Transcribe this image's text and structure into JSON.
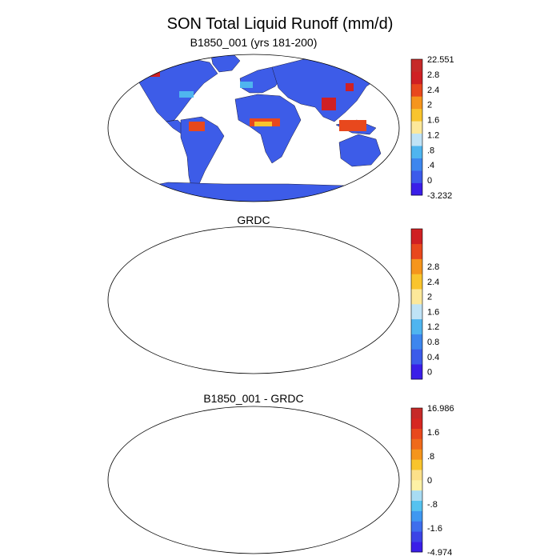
{
  "figure": {
    "title": "SON Total Liquid Runoff (mm/d)"
  },
  "panels": [
    {
      "id": "model",
      "title": "B1850_001 (yrs 181-200)",
      "colorbar": {
        "colors": [
          "#3a1ee8",
          "#3c5bea",
          "#3d86ee",
          "#4fb5ef",
          "#bfe3f6",
          "#fde89a",
          "#f9c42d",
          "#f5951c",
          "#e8481d",
          "#cf2023",
          "#c62a28"
        ],
        "labels": [
          "-3.232",
          "0",
          ".4",
          ".8",
          "1.2",
          "1.6",
          "2",
          "2.4",
          "2.8",
          "22.551"
        ]
      }
    },
    {
      "id": "obs",
      "title": "GRDC",
      "colorbar": {
        "colors": [
          "#3a1ee8",
          "#3c5bea",
          "#3d86ee",
          "#4fb5ef",
          "#bfe3f6",
          "#fde89a",
          "#f9c42d",
          "#f5951c",
          "#e8481d",
          "#cf2023"
        ],
        "labels": [
          "0",
          "0.4",
          "0.8",
          "1.2",
          "1.6",
          "2",
          "2.4",
          "2.8"
        ]
      }
    },
    {
      "id": "diff",
      "title": "B1850_001 - GRDC",
      "colorbar": {
        "colors": [
          "#3a1ee8",
          "#3c44e6",
          "#3e6eed",
          "#3f98f1",
          "#55c2f0",
          "#a8dcf3",
          "#fdf1a6",
          "#fce08a",
          "#f9c42d",
          "#f5951c",
          "#ef6a1b",
          "#e8481d",
          "#d62721",
          "#c62a28"
        ],
        "labels": [
          "-4.974",
          "-1.6",
          "-.8",
          "0",
          ".8",
          "1.6",
          "16.986"
        ]
      }
    }
  ]
}
